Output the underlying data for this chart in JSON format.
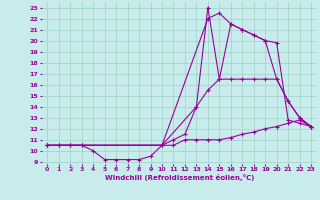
{
  "xlabel": "Windchill (Refroidissement éolien,°C)",
  "xlim": [
    -0.5,
    23.5
  ],
  "ylim": [
    8.8,
    23.5
  ],
  "yticks": [
    9,
    10,
    11,
    12,
    13,
    14,
    15,
    16,
    17,
    18,
    19,
    20,
    21,
    22,
    23
  ],
  "xticks": [
    0,
    1,
    2,
    3,
    4,
    5,
    6,
    7,
    8,
    9,
    10,
    11,
    12,
    13,
    14,
    15,
    16,
    17,
    18,
    19,
    20,
    21,
    22,
    23
  ],
  "bg_color": "#c8ecec",
  "grid_color": "#a0d0c8",
  "line_color": "#990099",
  "lines": [
    {
      "x": [
        0,
        1,
        2,
        3,
        4,
        5,
        6,
        7,
        8,
        9,
        10,
        11,
        12,
        13,
        14,
        15,
        16,
        17,
        18,
        19,
        20,
        21,
        22,
        23
      ],
      "y": [
        10.5,
        10.5,
        10.5,
        10.5,
        10.0,
        9.2,
        9.2,
        9.2,
        9.2,
        9.5,
        10.5,
        10.5,
        11.0,
        11.0,
        11.0,
        11.0,
        11.2,
        11.5,
        11.7,
        12.0,
        12.2,
        12.5,
        12.8,
        12.2
      ]
    },
    {
      "x": [
        0,
        1,
        2,
        3,
        10,
        11,
        12,
        13,
        14,
        15,
        16,
        17,
        18,
        19,
        20,
        21,
        22,
        23
      ],
      "y": [
        10.5,
        10.5,
        10.5,
        10.5,
        10.5,
        11.0,
        11.5,
        14.0,
        23.0,
        16.5,
        21.5,
        21.0,
        20.5,
        20.0,
        16.5,
        14.5,
        13.0,
        12.2
      ]
    },
    {
      "x": [
        0,
        10,
        14,
        15,
        16,
        17,
        18,
        19,
        20,
        21,
        22,
        23
      ],
      "y": [
        10.5,
        10.5,
        22.0,
        22.5,
        21.5,
        21.0,
        20.5,
        20.0,
        19.8,
        12.8,
        12.5,
        12.2
      ]
    },
    {
      "x": [
        0,
        10,
        13,
        14,
        15,
        16,
        17,
        18,
        19,
        20,
        21,
        22,
        23
      ],
      "y": [
        10.5,
        10.5,
        14.0,
        15.5,
        16.5,
        16.5,
        16.5,
        16.5,
        16.5,
        16.5,
        14.5,
        13.0,
        12.2
      ]
    }
  ]
}
